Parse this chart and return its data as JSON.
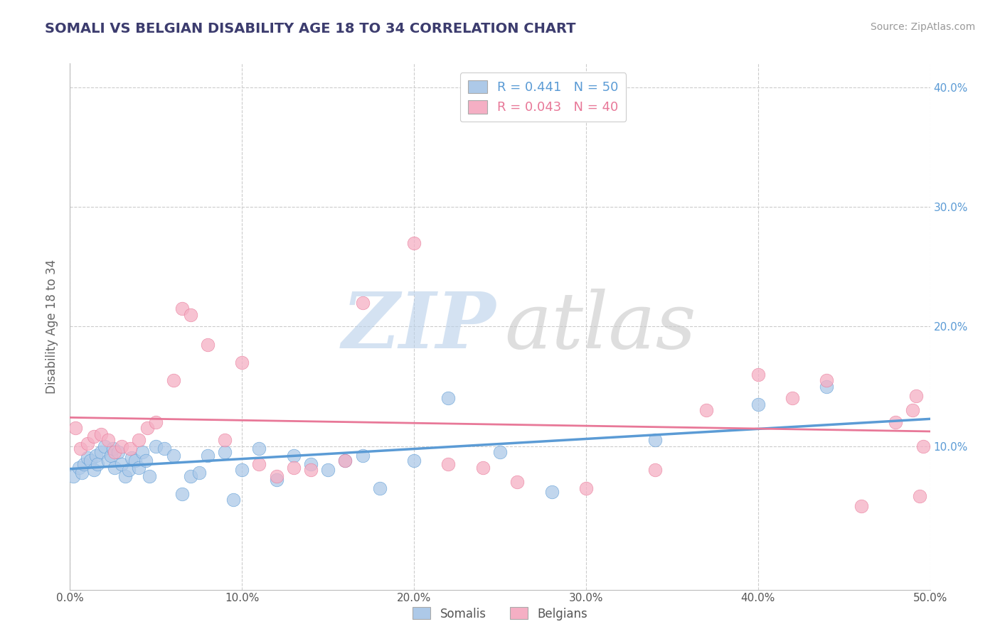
{
  "title": "SOMALI VS BELGIAN DISABILITY AGE 18 TO 34 CORRELATION CHART",
  "source": "Source: ZipAtlas.com",
  "ylabel": "Disability Age 18 to 34",
  "xlim": [
    0.0,
    0.5
  ],
  "ylim": [
    -0.02,
    0.42
  ],
  "xticks": [
    0.0,
    0.1,
    0.2,
    0.3,
    0.4,
    0.5
  ],
  "yticks": [
    0.1,
    0.2,
    0.3,
    0.4
  ],
  "xtick_labels": [
    "0.0%",
    "10.0%",
    "20.0%",
    "30.0%",
    "40.0%",
    "50.0%"
  ],
  "ytick_labels": [
    "10.0%",
    "20.0%",
    "30.0%",
    "40.0%"
  ],
  "somali_R": 0.441,
  "somali_N": 50,
  "belgian_R": 0.043,
  "belgian_N": 40,
  "somali_color": "#adc9e8",
  "belgian_color": "#f5afc4",
  "somali_line_color": "#5b9bd5",
  "belgian_line_color": "#e87898",
  "background_color": "#ffffff",
  "grid_color": "#cccccc",
  "watermark_color_zip": "#b8d0ea",
  "watermark_color_atlas": "#c8c8c8",
  "title_color": "#3c3c6e",
  "source_color": "#999999",
  "ytick_color": "#5b9bd5",
  "xtick_color": "#555555",
  "ylabel_color": "#666666",
  "somali_x": [
    0.002,
    0.005,
    0.007,
    0.008,
    0.01,
    0.012,
    0.014,
    0.015,
    0.016,
    0.018,
    0.02,
    0.022,
    0.024,
    0.025,
    0.026,
    0.028,
    0.03,
    0.032,
    0.034,
    0.036,
    0.038,
    0.04,
    0.042,
    0.044,
    0.046,
    0.05,
    0.055,
    0.06,
    0.065,
    0.07,
    0.075,
    0.08,
    0.09,
    0.095,
    0.1,
    0.11,
    0.12,
    0.13,
    0.14,
    0.15,
    0.16,
    0.17,
    0.18,
    0.2,
    0.22,
    0.25,
    0.28,
    0.34,
    0.4,
    0.44
  ],
  "somali_y": [
    0.075,
    0.082,
    0.078,
    0.085,
    0.09,
    0.088,
    0.08,
    0.092,
    0.085,
    0.095,
    0.1,
    0.088,
    0.092,
    0.098,
    0.082,
    0.095,
    0.085,
    0.075,
    0.08,
    0.09,
    0.088,
    0.082,
    0.095,
    0.088,
    0.075,
    0.1,
    0.098,
    0.092,
    0.06,
    0.075,
    0.078,
    0.092,
    0.095,
    0.055,
    0.08,
    0.098,
    0.072,
    0.092,
    0.085,
    0.08,
    0.088,
    0.092,
    0.065,
    0.088,
    0.14,
    0.095,
    0.062,
    0.105,
    0.135,
    0.15
  ],
  "belgian_x": [
    0.003,
    0.006,
    0.01,
    0.014,
    0.018,
    0.022,
    0.026,
    0.03,
    0.035,
    0.04,
    0.045,
    0.05,
    0.06,
    0.065,
    0.07,
    0.08,
    0.09,
    0.1,
    0.11,
    0.12,
    0.13,
    0.14,
    0.16,
    0.17,
    0.2,
    0.22,
    0.24,
    0.26,
    0.3,
    0.34,
    0.37,
    0.4,
    0.42,
    0.44,
    0.46,
    0.48,
    0.49,
    0.492,
    0.494,
    0.496
  ],
  "belgian_y": [
    0.115,
    0.098,
    0.102,
    0.108,
    0.11,
    0.105,
    0.095,
    0.1,
    0.098,
    0.105,
    0.115,
    0.12,
    0.155,
    0.215,
    0.21,
    0.185,
    0.105,
    0.17,
    0.085,
    0.075,
    0.082,
    0.08,
    0.088,
    0.22,
    0.27,
    0.085,
    0.082,
    0.07,
    0.065,
    0.08,
    0.13,
    0.16,
    0.14,
    0.155,
    0.05,
    0.12,
    0.13,
    0.142,
    0.058,
    0.1
  ]
}
